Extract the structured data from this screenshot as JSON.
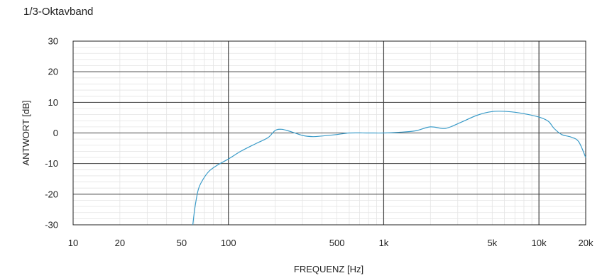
{
  "chart_data": {
    "type": "line",
    "title": "1/3-Oktavband",
    "xlabel": "FREQUENZ [Hz]",
    "ylabel": "ANTWORT [dB]",
    "x_scale": "log",
    "xlim": [
      10,
      20000
    ],
    "ylim": [
      -30,
      30
    ],
    "grid": true,
    "x_ticks": [
      {
        "value": 10,
        "label": "10"
      },
      {
        "value": 20,
        "label": "20"
      },
      {
        "value": 50,
        "label": "50"
      },
      {
        "value": 100,
        "label": "100"
      },
      {
        "value": 500,
        "label": "500"
      },
      {
        "value": 1000,
        "label": "1k"
      },
      {
        "value": 5000,
        "label": "5k"
      },
      {
        "value": 10000,
        "label": "10k"
      },
      {
        "value": 20000,
        "label": "20k"
      }
    ],
    "y_ticks": [
      {
        "value": 30,
        "label": "30"
      },
      {
        "value": 20,
        "label": "20"
      },
      {
        "value": 10,
        "label": "10"
      },
      {
        "value": 0,
        "label": "0"
      },
      {
        "value": -10,
        "label": "-10"
      },
      {
        "value": -20,
        "label": "-20"
      },
      {
        "value": -30,
        "label": "-30"
      }
    ],
    "series": [
      {
        "color": "#3a9bc8",
        "x": [
          59,
          61,
          64,
          68,
          75,
          85,
          100,
          120,
          150,
          180,
          200,
          220,
          250,
          300,
          350,
          400,
          500,
          600,
          800,
          1000,
          1250,
          1600,
          2000,
          2500,
          3150,
          4000,
          5000,
          6300,
          8000,
          10000,
          11500,
          12500,
          14000,
          16000,
          18000,
          20000
        ],
        "y": [
          -30,
          -24,
          -18.5,
          -15.5,
          -12.5,
          -10.5,
          -8.5,
          -6,
          -3.5,
          -1.5,
          0.8,
          1.2,
          0.5,
          -0.8,
          -1.2,
          -1,
          -0.5,
          0,
          0,
          0,
          0.2,
          0.7,
          2,
          1.5,
          3.5,
          5.8,
          7,
          7,
          6.3,
          5.2,
          3.8,
          1.5,
          -0.5,
          -1.3,
          -2.8,
          -8
        ]
      }
    ]
  }
}
